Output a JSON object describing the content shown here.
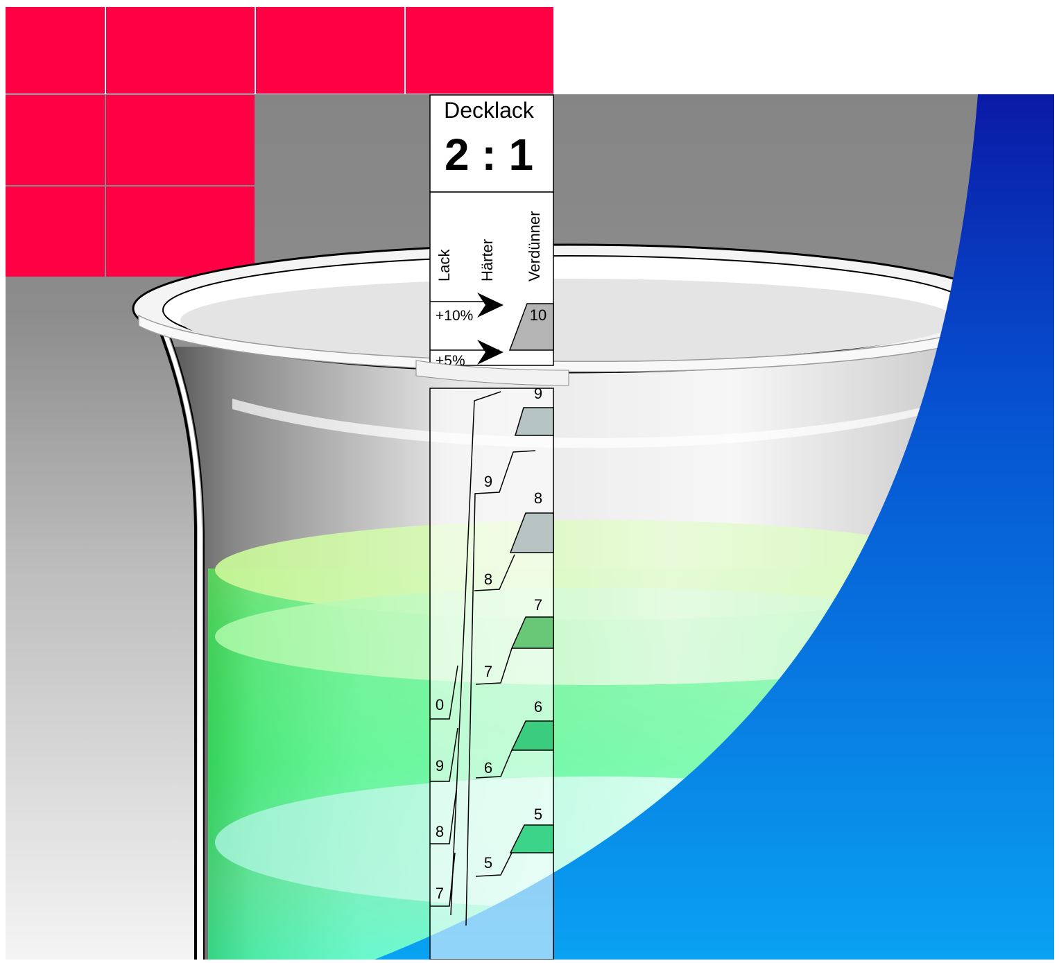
{
  "colors": {
    "tile": "#ff0044",
    "tile_grid": "#f0c8d0",
    "backdrop_top": "#8a8a8a",
    "backdrop_bottom": "#f2f2f2",
    "blue_top": "#0a1ea8",
    "blue_bottom": "#0aa0f0",
    "liquid_top": "#c8f59a",
    "liquid_mid": "#60ff9c",
    "liquid_bottom": "#60ffff",
    "ink": "#000000",
    "strip": "#ffffff"
  },
  "strip": {
    "title": "Decklack",
    "ratio": "2 : 1",
    "columns": {
      "lack": "Lack",
      "haerter": "Härter",
      "verduenner": "Verdünner"
    },
    "arrow_labels": {
      "plus10": "+10%",
      "plus5": "+5%"
    },
    "verduenner_marks": [
      {
        "label": "10",
        "fill": "#b4b4b4"
      },
      {
        "label": "9",
        "fill": "#b7c4c4"
      },
      {
        "label": "8",
        "fill": "#b8c4c4"
      },
      {
        "label": "7",
        "fill": "#68c878"
      },
      {
        "label": "6",
        "fill": "#3ccc80"
      },
      {
        "label": "5",
        "fill": "#3cd488"
      }
    ],
    "haerter_marks": [
      "9",
      "8",
      "7",
      "6",
      "5"
    ],
    "lack_marks": [
      "0",
      "9",
      "8",
      "7"
    ]
  }
}
